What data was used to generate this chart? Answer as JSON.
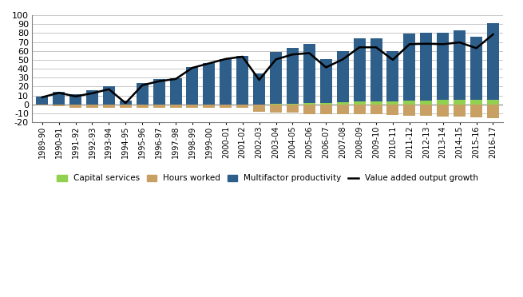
{
  "years": [
    "1989-90",
    "1990-91",
    "1991-92",
    "1992-93",
    "1993-94",
    "1994-95",
    "1995-96",
    "1996-97",
    "1997-98",
    "1998-99",
    "1999-00",
    "2000-01",
    "2001-02",
    "2002-03",
    "2003-04",
    "2004-05",
    "2005-06",
    "2006-07",
    "2007-08",
    "2008-09",
    "2009-10",
    "2010-11",
    "2011-12",
    "2012-13",
    "2013-14",
    "2014-15",
    "2015-16",
    "2016-17"
  ],
  "capital_services": [
    0.0,
    0.0,
    0.0,
    0.0,
    0.0,
    0.0,
    0.0,
    0.0,
    0.0,
    0.0,
    0.0,
    0.0,
    0.0,
    0.0,
    0.5,
    0.5,
    1.5,
    2.0,
    2.5,
    3.5,
    3.5,
    3.5,
    4.0,
    4.5,
    5.0,
    5.5,
    5.5,
    5.5
  ],
  "hours_worked": [
    -1.0,
    -2.0,
    -3.5,
    -3.5,
    -4.0,
    -3.5,
    -3.5,
    -3.5,
    -3.5,
    -3.5,
    -3.5,
    -3.5,
    -3.5,
    -8.5,
    -9.0,
    -9.5,
    -10.5,
    -10.5,
    -10.5,
    -11.0,
    -11.0,
    -11.5,
    -13.0,
    -13.0,
    -14.0,
    -14.0,
    -14.5,
    -15.5
  ],
  "multifactor_productivity": [
    9.0,
    14.5,
    11.5,
    15.5,
    20.0,
    4.5,
    24.0,
    28.5,
    29.0,
    41.5,
    46.0,
    51.0,
    54.0,
    35.0,
    58.5,
    62.5,
    66.0,
    49.0,
    57.5,
    70.5,
    70.5,
    56.0,
    75.5,
    76.0,
    75.5,
    77.5,
    70.0,
    86.0
  ],
  "value_added_output_growth": [
    8.0,
    13.0,
    9.0,
    12.5,
    17.0,
    1.5,
    21.5,
    26.0,
    28.5,
    41.0,
    46.0,
    51.0,
    53.5,
    27.5,
    50.5,
    56.0,
    57.5,
    41.5,
    50.5,
    64.0,
    64.0,
    50.0,
    67.5,
    68.0,
    67.5,
    69.5,
    63.0,
    78.5
  ],
  "bar_color_capital": "#92d050",
  "bar_color_hours": "#c8a064",
  "bar_color_mfp": "#2e5f8a",
  "line_color": "#000000",
  "ylim": [
    -20,
    100
  ],
  "yticks": [
    -20,
    -10,
    0,
    10,
    20,
    30,
    40,
    50,
    60,
    70,
    80,
    90,
    100
  ],
  "legend_labels": [
    "Capital services",
    "Hours worked",
    "Multifactor productivity",
    "Value added output growth"
  ],
  "fig_width": 6.55,
  "fig_height": 3.72,
  "dpi": 100
}
